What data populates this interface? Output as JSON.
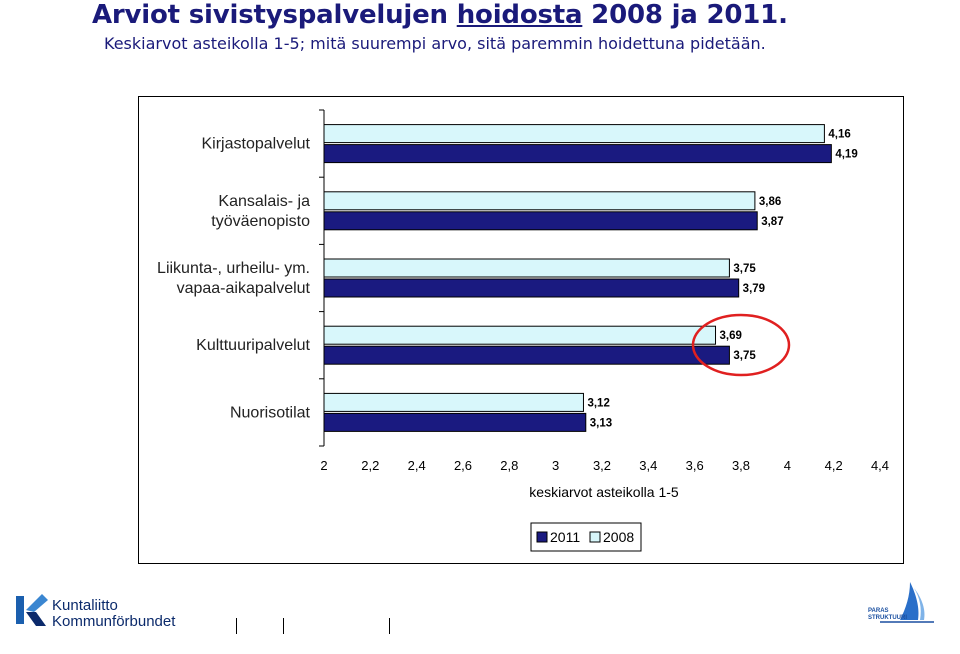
{
  "page": {
    "title_part1": "Arviot sivistyspalvelujen ",
    "title_underlined": "hoidosta",
    "title_part2": " 2008 ja 2011.",
    "subtitle": "Keskiarvot asteikolla 1-5; mitä suurempi arvo, sitä paremmin hoidettuna pidetään."
  },
  "chart_data": {
    "type": "bar",
    "orientation": "horizontal",
    "categories": [
      [
        "Kirjastopalvelut"
      ],
      [
        "Kansalais- ja",
        "työväenopisto"
      ],
      [
        "Liikunta-, urheilu- ym.",
        "vapaa-aikapalvelut"
      ],
      [
        "Kulttuuripalvelut"
      ],
      [
        "Nuorisotilat"
      ]
    ],
    "series": [
      {
        "name": "2011",
        "values": [
          4.19,
          3.87,
          3.79,
          3.75,
          3.13
        ],
        "labels": [
          "4,19",
          "3,87",
          "3,79",
          "3,75",
          "3,13"
        ],
        "color": "#1a1a80"
      },
      {
        "name": "2008",
        "values": [
          4.16,
          3.86,
          3.75,
          3.69,
          3.12
        ],
        "labels": [
          "4,16",
          "3,86",
          "3,75",
          "3,69",
          "3,12"
        ],
        "color": "#d8f7fb"
      }
    ],
    "xlabel": "keskiarvot asteikolla 1-5",
    "xlim": [
      2,
      4.4
    ],
    "xticks": [
      "2",
      "2,2",
      "2,4",
      "2,6",
      "2,8",
      "3",
      "3,2",
      "3,4",
      "3,6",
      "3,8",
      "4",
      "4,2",
      "4,4"
    ],
    "legend": {
      "position": "bottom",
      "entries": [
        "2011",
        "2008"
      ]
    },
    "annotation": "red ellipse highlighting Kulttuuripalvelut values",
    "grid": false
  },
  "footer": {
    "logo_line1": "Kuntaliitto",
    "logo_line2": "Kommunförbundet",
    "right_logo_line1": "PARAS",
    "right_logo_line2": "STRUKTUURI"
  },
  "colors": {
    "title": "#1a1a7a",
    "annotation": "#e02020",
    "logo": "#0b2a6b"
  }
}
